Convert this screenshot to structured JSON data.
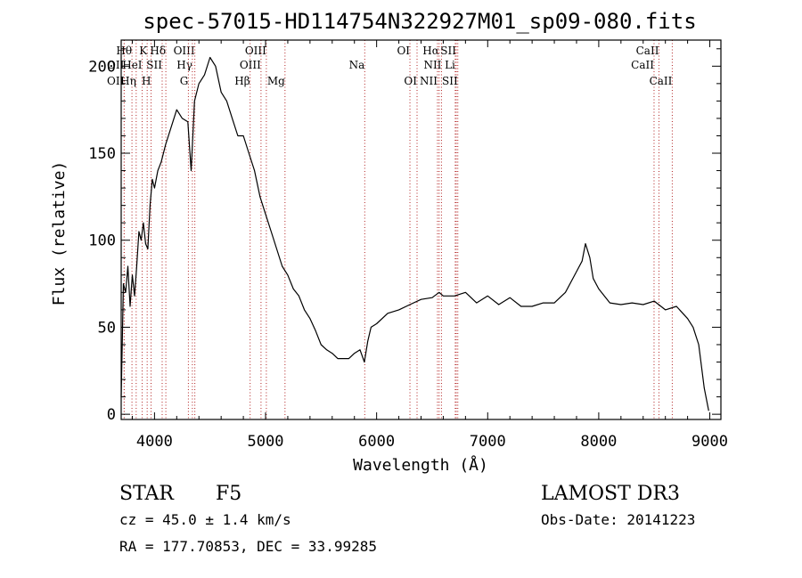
{
  "chart_data": {
    "type": "line",
    "title": "spec-57015-HD114754N322927M01_sp09-080.fits",
    "xlabel": "Wavelength (Å)",
    "ylabel": "Flux (relative)",
    "xlim": [
      3700,
      9100
    ],
    "ylim": [
      -3,
      215
    ],
    "x_ticks": [
      4000,
      5000,
      6000,
      7000,
      8000,
      9000
    ],
    "y_ticks": [
      0,
      50,
      100,
      150,
      200
    ],
    "grid": false,
    "series": [
      {
        "x": [
          3700,
          3720,
          3740,
          3760,
          3780,
          3800,
          3820,
          3840,
          3860,
          3880,
          3900,
          3920,
          3940,
          3960,
          3980,
          4000,
          4030,
          4060,
          4100,
          4150,
          4200,
          4250,
          4300,
          4330,
          4360,
          4400,
          4450,
          4500,
          4550,
          4600,
          4650,
          4700,
          4750,
          4800,
          4850,
          4900,
          4950,
          5000,
          5050,
          5100,
          5150,
          5200,
          5250,
          5300,
          5350,
          5400,
          5450,
          5500,
          5550,
          5600,
          5650,
          5700,
          5750,
          5800,
          5850,
          5890,
          5920,
          5950,
          6000,
          6100,
          6200,
          6300,
          6400,
          6500,
          6563,
          6600,
          6700,
          6800,
          6900,
          7000,
          7100,
          7200,
          7300,
          7400,
          7500,
          7600,
          7700,
          7800,
          7850,
          7880,
          7920,
          7950,
          8000,
          8100,
          8200,
          8300,
          8400,
          8500,
          8600,
          8700,
          8800,
          8850,
          8900,
          8950,
          8990
        ],
        "y": [
          10,
          75,
          70,
          85,
          62,
          80,
          68,
          85,
          105,
          100,
          110,
          98,
          95,
          120,
          135,
          130,
          140,
          145,
          155,
          165,
          175,
          170,
          168,
          140,
          180,
          190,
          195,
          205,
          200,
          185,
          180,
          170,
          160,
          160,
          150,
          140,
          125,
          115,
          105,
          95,
          85,
          80,
          72,
          68,
          60,
          55,
          48,
          40,
          37,
          35,
          32,
          32,
          32,
          35,
          37,
          30,
          42,
          50,
          52,
          58,
          60,
          63,
          66,
          67,
          70,
          68,
          68,
          70,
          64,
          68,
          63,
          67,
          62,
          62,
          64,
          64,
          70,
          82,
          88,
          98,
          90,
          78,
          72,
          64,
          63,
          64,
          63,
          65,
          60,
          62,
          55,
          50,
          40,
          15,
          2
        ]
      }
    ],
    "line_markers": [
      {
        "label": "Hθ",
        "x": 3797,
        "row": 0,
        "side": "left"
      },
      {
        "label": "OII",
        "x": 3727,
        "row": 1,
        "side": "left"
      },
      {
        "label": "OII",
        "x": 3727,
        "row": 2,
        "side": "left"
      },
      {
        "label": "Hη",
        "x": 3835,
        "row": 2,
        "side": "left"
      },
      {
        "label": "K",
        "x": 3934,
        "row": 0,
        "side": "left"
      },
      {
        "label": "H",
        "x": 3969,
        "row": 2,
        "side": "left"
      },
      {
        "label": "HeI",
        "x": 3889,
        "row": 1,
        "side": "left"
      },
      {
        "label": "SII",
        "x": 4069,
        "row": 1,
        "side": "left"
      },
      {
        "label": "Hδ",
        "x": 4102,
        "row": 0,
        "side": "left"
      },
      {
        "label": "OIII",
        "x": 4363,
        "row": 0,
        "side": "left"
      },
      {
        "label": "Hγ",
        "x": 4341,
        "row": 1,
        "side": "left"
      },
      {
        "label": "G",
        "x": 4305,
        "row": 2,
        "side": "left"
      },
      {
        "label": "Hβ",
        "x": 4861,
        "row": 2,
        "side": "left"
      },
      {
        "label": "OIII",
        "x": 5007,
        "row": 0,
        "side": "left"
      },
      {
        "label": "OIII",
        "x": 4959,
        "row": 1,
        "side": "left"
      },
      {
        "label": "Mg",
        "x": 5175,
        "row": 2,
        "side": "left"
      },
      {
        "label": "Na",
        "x": 5893,
        "row": 1,
        "side": "left"
      },
      {
        "label": "OI",
        "x": 6300,
        "row": 0,
        "side": "left"
      },
      {
        "label": "OI",
        "x": 6364,
        "row": 2,
        "side": "left"
      },
      {
        "label": "Hα",
        "x": 6563,
        "row": 0,
        "side": "left"
      },
      {
        "label": "NII",
        "x": 6584,
        "row": 1,
        "side": "left"
      },
      {
        "label": "NII",
        "x": 6548,
        "row": 2,
        "side": "left"
      },
      {
        "label": "SII",
        "x": 6717,
        "row": 0,
        "side": "left"
      },
      {
        "label": "Li",
        "x": 6708,
        "row": 1,
        "side": "left"
      },
      {
        "label": "SII",
        "x": 6731,
        "row": 2,
        "side": "left"
      },
      {
        "label": "CaII",
        "x": 8542,
        "row": 0,
        "side": "left"
      },
      {
        "label": "CaII",
        "x": 8498,
        "row": 1,
        "side": "left"
      },
      {
        "label": "CaII",
        "x": 8662,
        "row": 2,
        "side": "left"
      }
    ]
  },
  "info": {
    "object_class": "STAR",
    "subclass": "F5",
    "redshift_line": "cz = 45.0 ± 1.4 km/s",
    "coords_line": "RA = 177.70853, DEC =  33.99285",
    "survey": "LAMOST DR3",
    "obs_date_line": "Obs-Date: 20141223"
  }
}
